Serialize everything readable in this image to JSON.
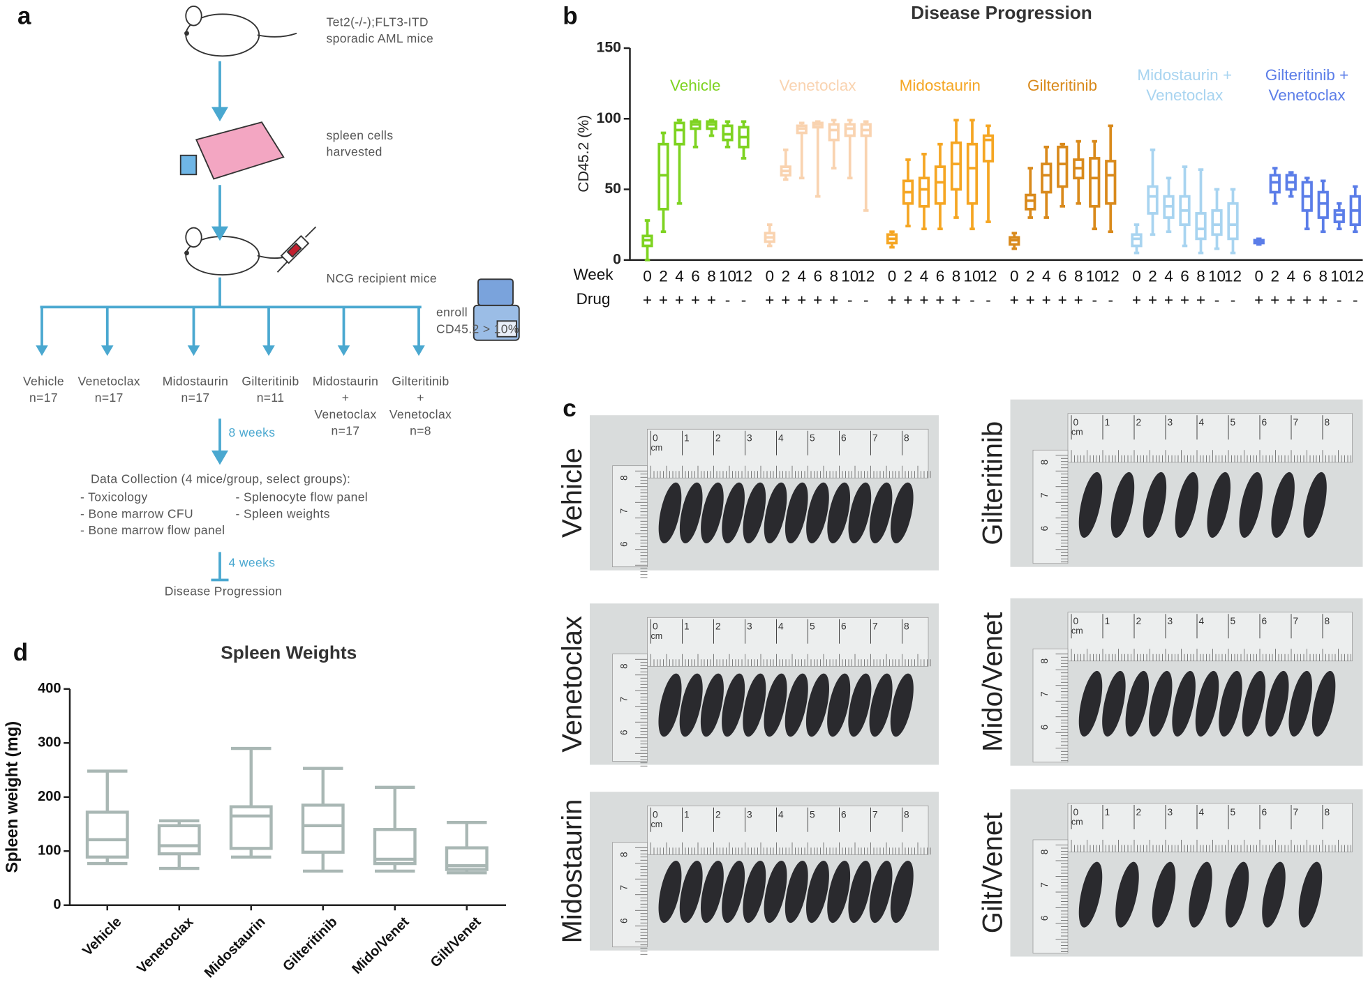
{
  "panels": [
    "a",
    "b",
    "c",
    "d"
  ],
  "diagram": {
    "donor": [
      "Tet2(-/-);FLT3-ITD",
      "sporadic AML mice"
    ],
    "harvest": [
      "spleen cells",
      "harvested"
    ],
    "recipient": "NCG recipient mice",
    "enroll": [
      "enroll",
      "CD45.2 > 10%"
    ],
    "groups": [
      {
        "lines": [
          "Vehicle"
        ],
        "n": "n=17"
      },
      {
        "lines": [
          "Venetoclax"
        ],
        "n": "n=17"
      },
      {
        "lines": [
          "Midostaurin"
        ],
        "n": "n=17"
      },
      {
        "lines": [
          "Gilteritinib"
        ],
        "n": "n=11"
      },
      {
        "lines": [
          "Midostaurin",
          "+",
          "Venetoclax"
        ],
        "n": "n=17"
      },
      {
        "lines": [
          "Gilteritinib",
          "+",
          "Venetoclax"
        ],
        "n": "n=8"
      }
    ],
    "interval1": "8 weeks",
    "collection_title": "Data Collection (4 mice/group, select groups):",
    "collection_left": [
      "- Toxicology",
      "- Bone marrow CFU",
      "- Bone marrow flow panel"
    ],
    "collection_right": [
      "- Splenocyte flow panel",
      "- Spleen weights"
    ],
    "interval2": "4 weeks",
    "endpoint": "Disease Progression"
  },
  "chart_data": [
    {
      "type": "box",
      "title": "Disease Progression",
      "y_label": "CD45.2 (%)",
      "row_labels": [
        "Week",
        "Drug"
      ],
      "categories": [
        "0",
        "2",
        "4",
        "6",
        "8",
        "10",
        "12"
      ],
      "drug": [
        "+",
        "+",
        "+",
        "+",
        "+",
        "-",
        "-"
      ],
      "ylim": [
        0,
        150
      ],
      "yticks": [
        0,
        50,
        100,
        150
      ],
      "series": [
        {
          "name": "Vehicle",
          "color": "#7ed321",
          "min": [
            0,
            20,
            40,
            80,
            88,
            80,
            72
          ],
          "q1": [
            10,
            36,
            82,
            93,
            93,
            85,
            80
          ],
          "median": [
            14,
            60,
            92,
            96,
            96,
            89,
            87
          ],
          "q3": [
            17,
            82,
            97,
            98,
            98,
            95,
            94
          ],
          "max": [
            28,
            90,
            99,
            99,
            99,
            98,
            98
          ]
        },
        {
          "name": "Venetoclax",
          "color": "#f9d3b0",
          "min": [
            10,
            57,
            58,
            45,
            65,
            58,
            35
          ],
          "q1": [
            13,
            60,
            90,
            94,
            85,
            88,
            88
          ],
          "median": [
            16,
            63,
            93,
            96,
            92,
            93,
            92
          ],
          "q3": [
            19,
            66,
            95,
            97,
            96,
            96,
            96
          ],
          "max": [
            25,
            78,
            97,
            98,
            99,
            99,
            98
          ]
        },
        {
          "name": "Midostaurin",
          "color": "#f5a623",
          "min": [
            9,
            24,
            22,
            22,
            30,
            22,
            27
          ],
          "q1": [
            12,
            40,
            38,
            40,
            50,
            40,
            70
          ],
          "median": [
            15,
            48,
            50,
            55,
            68,
            65,
            85
          ],
          "q3": [
            18,
            56,
            58,
            66,
            83,
            82,
            88
          ],
          "max": [
            20,
            71,
            75,
            82,
            99,
            99,
            95
          ]
        },
        {
          "name": "Gilteritinib",
          "color": "#d98a1c",
          "min": [
            8,
            30,
            30,
            38,
            40,
            22,
            20
          ],
          "q1": [
            11,
            36,
            48,
            52,
            58,
            38,
            40
          ],
          "median": [
            14,
            42,
            60,
            68,
            65,
            58,
            60
          ],
          "q3": [
            16,
            46,
            68,
            80,
            71,
            72,
            70
          ],
          "max": [
            19,
            65,
            80,
            82,
            84,
            84,
            95
          ]
        },
        {
          "name": "Midostaurin + Venetoclax",
          "color": "#a8d4f0",
          "min": [
            5,
            18,
            20,
            10,
            5,
            8,
            5
          ],
          "q1": [
            10,
            33,
            30,
            25,
            15,
            18,
            15
          ],
          "median": [
            15,
            45,
            38,
            35,
            22,
            25,
            25
          ],
          "q3": [
            18,
            52,
            45,
            45,
            33,
            35,
            40
          ],
          "max": [
            25,
            78,
            58,
            66,
            64,
            50,
            50
          ]
        },
        {
          "name": "Gilteritinib + Venetoclax",
          "color": "#5b7de8",
          "min": [
            11,
            40,
            45,
            22,
            20,
            22,
            20
          ],
          "q1": [
            12,
            48,
            50,
            35,
            30,
            27,
            25
          ],
          "median": [
            13,
            55,
            55,
            45,
            40,
            32,
            35
          ],
          "q3": [
            14,
            60,
            60,
            55,
            48,
            35,
            45
          ],
          "max": [
            15,
            65,
            62,
            58,
            56,
            40,
            52
          ]
        }
      ]
    },
    {
      "type": "box",
      "title": "Spleen Weights",
      "y_label": "Spleen weight (mg)",
      "categories": [
        "Vehicle",
        "Venetoclax",
        "Midostaurin",
        "Gilteritinib",
        "Mido/Venet",
        "Gilt/Venet"
      ],
      "color": "#a9b7b4",
      "ylim": [
        0,
        400
      ],
      "yticks": [
        0,
        100,
        200,
        300,
        400
      ],
      "min": [
        77,
        68,
        89,
        63,
        63,
        60
      ],
      "q1": [
        89,
        95,
        105,
        98,
        77,
        66
      ],
      "median": [
        121,
        110,
        165,
        147,
        85,
        73
      ],
      "q3": [
        172,
        147,
        182,
        185,
        140,
        106
      ],
      "max": [
        248,
        156,
        290,
        253,
        218,
        153
      ]
    }
  ],
  "photos": {
    "ruler_labels": [
      "0",
      "1",
      "2",
      "3",
      "4",
      "5",
      "6",
      "7",
      "8"
    ],
    "ruler_unit": "cm",
    "ruler_v_labels": [
      "8",
      "7",
      "6"
    ],
    "labels": [
      "Vehicle",
      "Gilteritinib",
      "Venetoclax",
      "Mido/Venet",
      "Midostaurin",
      "Gilt/Venet"
    ]
  }
}
